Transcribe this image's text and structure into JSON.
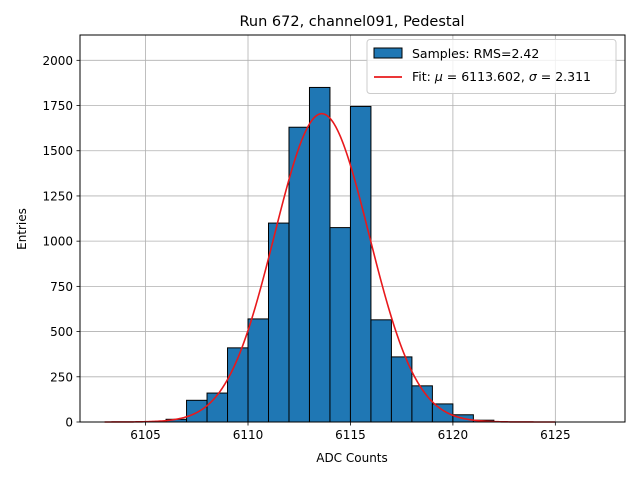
{
  "chart_data": {
    "type": "bar",
    "title": "Run 672, channel091, Pedestal",
    "xlabel": "ADC Counts",
    "ylabel": "Entries",
    "xlim": [
      6101.8,
      6128.4
    ],
    "ylim": [
      0,
      2140
    ],
    "xticks": [
      6105,
      6110,
      6115,
      6120,
      6125
    ],
    "yticks": [
      0,
      250,
      500,
      750,
      1000,
      1250,
      1500,
      1750,
      2000
    ],
    "grid": true,
    "histogram": {
      "name": "Samples: RMS=2.42",
      "color": "#1f77b4",
      "bins": [
        {
          "x0": 6106,
          "x1": 6107,
          "count": 15
        },
        {
          "x0": 6107,
          "x1": 6108,
          "count": 120
        },
        {
          "x0": 6108,
          "x1": 6109,
          "count": 160
        },
        {
          "x0": 6109,
          "x1": 6110,
          "count": 410
        },
        {
          "x0": 6110,
          "x1": 6111,
          "count": 570
        },
        {
          "x0": 6111,
          "x1": 6112,
          "count": 1100
        },
        {
          "x0": 6112,
          "x1": 6113,
          "count": 1630
        },
        {
          "x0": 6113,
          "x1": 6114,
          "count": 1850
        },
        {
          "x0": 6114,
          "x1": 6115,
          "count": 1075
        },
        {
          "x0": 6115,
          "x1": 6116,
          "count": 1745
        },
        {
          "x0": 6116,
          "x1": 6117,
          "count": 565
        },
        {
          "x0": 6117,
          "x1": 6118,
          "count": 360
        },
        {
          "x0": 6118,
          "x1": 6119,
          "count": 200
        },
        {
          "x0": 6119,
          "x1": 6120,
          "count": 100
        },
        {
          "x0": 6120,
          "x1": 6121,
          "count": 40
        },
        {
          "x0": 6121,
          "x1": 6122,
          "count": 10
        }
      ]
    },
    "fit": {
      "name_prefix": "Fit: ",
      "mu_symbol": "μ",
      "sigma_symbol": "σ",
      "mu": 6113.602,
      "sigma": 2.311,
      "amplitude": 1705,
      "x_range": [
        6103,
        6125
      ],
      "color": "#e8191c"
    },
    "legend_position": "upper-right"
  }
}
